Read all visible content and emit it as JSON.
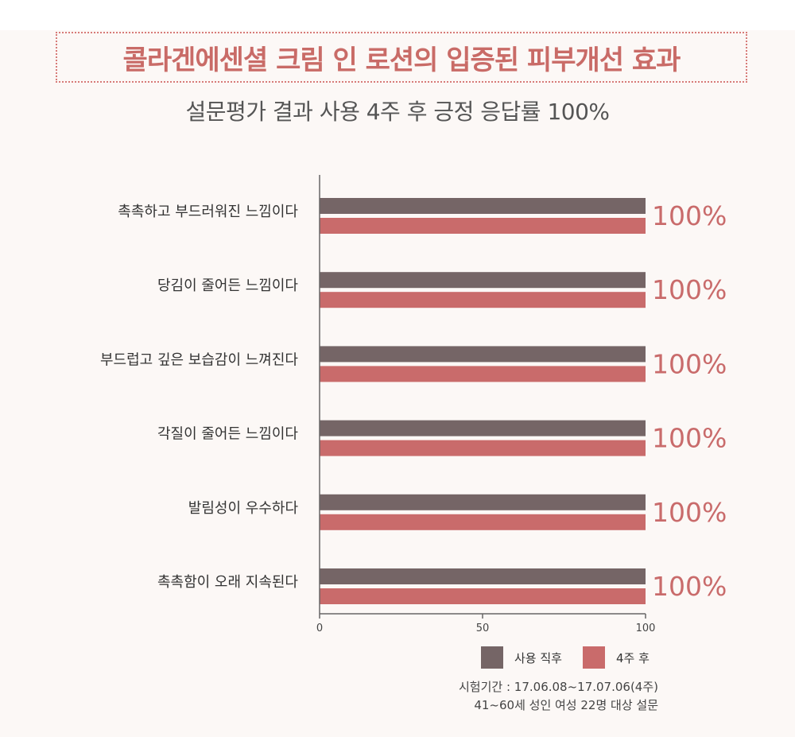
{
  "header": {
    "title": "콜라겐에센셜 크림 인 로션의 입증된 피부개선 효과",
    "subtitle": "설문평가 결과 사용 4주 후  긍정 응답률 100%"
  },
  "chart_data": {
    "type": "bar",
    "orientation": "horizontal",
    "categories": [
      "촉촉하고 부드러워진 느낌이다",
      "당김이 줄어든 느낌이다",
      "부드럽고 깊은 보습감이 느껴진다",
      "각질이 줄어든 느낌이다",
      "발림성이 우수하다",
      "촉촉함이 오래 지속된다"
    ],
    "series": [
      {
        "name": "사용 직후",
        "color": "#756566",
        "values": [
          100,
          100,
          100,
          100,
          100,
          100
        ]
      },
      {
        "name": "4주 후",
        "color": "#c96b6b",
        "values": [
          100,
          100,
          100,
          100,
          100,
          100
        ]
      }
    ],
    "value_labels": [
      "100%",
      "100%",
      "100%",
      "100%",
      "100%",
      "100%"
    ],
    "xlim": [
      0,
      100
    ],
    "xticks": [
      0,
      50,
      100
    ],
    "grid": false,
    "legend_position": "bottom-right"
  },
  "footnote": {
    "line1": "시험기간 : 17.06.08~17.07.06(4주)",
    "line2": "41~60세 성인 여성 22명 대상 설문"
  }
}
